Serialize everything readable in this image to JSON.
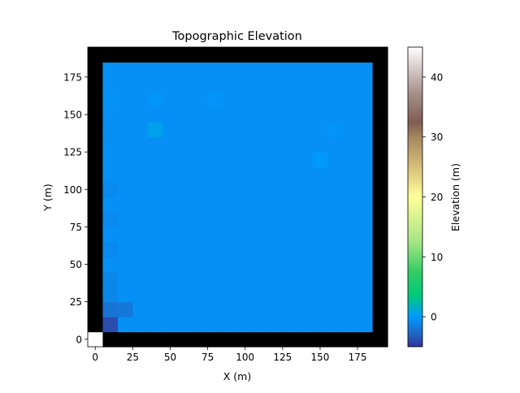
{
  "chart_data": {
    "type": "heatmap",
    "title": "Topographic Elevation",
    "xlabel": "X (m)",
    "ylabel": "Y (m)",
    "xlim": [
      -5,
      195
    ],
    "ylim": [
      -5,
      195
    ],
    "x_ticks": [
      0,
      25,
      50,
      75,
      100,
      125,
      150,
      175
    ],
    "y_ticks": [
      0,
      25,
      50,
      75,
      100,
      125,
      150,
      175
    ],
    "cell_size": 10,
    "grid_origin": [
      -5,
      -5
    ],
    "grid_cols": 20,
    "grid_rows": 20,
    "base_elevation": -0.5,
    "border_elevation": null,
    "cells": [
      {
        "x": 0,
        "y": 0,
        "value": 45
      },
      {
        "x": 10,
        "y": 10,
        "value": -4.0
      },
      {
        "x": 10,
        "y": 20,
        "value": -2.0
      },
      {
        "x": 20,
        "y": 20,
        "value": -1.8
      },
      {
        "x": 10,
        "y": 30,
        "value": -1.0
      },
      {
        "x": 10,
        "y": 40,
        "value": -1.0
      },
      {
        "x": 10,
        "y": 60,
        "value": -0.8
      },
      {
        "x": 10,
        "y": 80,
        "value": -0.8
      },
      {
        "x": 10,
        "y": 100,
        "value": -0.8
      },
      {
        "x": 10,
        "y": 140,
        "value": -0.6
      },
      {
        "x": 40,
        "y": 140,
        "value": 0.5
      },
      {
        "x": 10,
        "y": 160,
        "value": -0.4
      },
      {
        "x": 40,
        "y": 160,
        "value": -0.3
      },
      {
        "x": 80,
        "y": 160,
        "value": -0.3
      },
      {
        "x": 150,
        "y": 120,
        "value": 0.0
      },
      {
        "x": 160,
        "y": 140,
        "value": -0.3
      }
    ],
    "colorbar": {
      "label": "Elevation (m)",
      "min": -5,
      "max": 45,
      "ticks": [
        0,
        10,
        20,
        30,
        40
      ],
      "colormap": "terrain"
    }
  }
}
